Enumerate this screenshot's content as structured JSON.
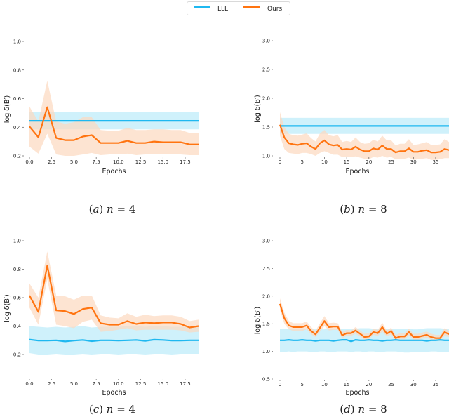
{
  "legend": {
    "items": [
      {
        "label": "LLL",
        "color": "#1fb8f0"
      },
      {
        "label": "Ours",
        "color": "#ff7410"
      }
    ]
  },
  "colors": {
    "lll_line": "#1fb8f0",
    "lll_band": "#c7eefa",
    "ours_line": "#ff7410",
    "ours_band": "#fcd9bf"
  },
  "chart_data": [
    {
      "id": "a",
      "type": "line",
      "caption": "(a) n = 4",
      "caption_parts": {
        "label": "(a)",
        "var": "n",
        "eq": "= 4"
      },
      "xlabel": "Epochs",
      "ylabel": "log δ(B′)",
      "xlim": [
        0,
        19
      ],
      "ylim": [
        0.2,
        1.0
      ],
      "xticks": [
        0.0,
        2.5,
        5.0,
        7.5,
        10.0,
        12.5,
        15.0,
        17.5
      ],
      "xtick_labels": [
        "0.0",
        "2.5",
        "5.0",
        "7.5",
        "10.0",
        "12.5",
        "15.0",
        "17.5"
      ],
      "yticks": [
        0.2,
        0.4,
        0.6,
        0.8,
        1.0
      ],
      "ytick_labels": [
        "0.2",
        "0.4",
        "0.6",
        "0.8",
        "1.0"
      ],
      "grid": false,
      "series": [
        {
          "name": "LLL",
          "x": [
            0,
            19
          ],
          "values": [
            0.445,
            0.445
          ],
          "lower": [
            0.385,
            0.385
          ],
          "upper": [
            0.505,
            0.505
          ]
        },
        {
          "name": "Ours",
          "x": [
            0,
            1,
            2,
            3,
            4,
            5,
            6,
            7,
            8,
            9,
            10,
            11,
            12,
            13,
            14,
            15,
            16,
            17,
            18,
            19
          ],
          "values": [
            0.405,
            0.33,
            0.54,
            0.325,
            0.31,
            0.31,
            0.335,
            0.345,
            0.29,
            0.29,
            0.29,
            0.305,
            0.29,
            0.29,
            0.3,
            0.295,
            0.295,
            0.295,
            0.28,
            0.28
          ],
          "lower": [
            0.265,
            0.215,
            0.355,
            0.21,
            0.2,
            0.2,
            0.21,
            0.22,
            0.205,
            0.21,
            0.21,
            0.215,
            0.205,
            0.21,
            0.21,
            0.21,
            0.21,
            0.21,
            0.205,
            0.205
          ],
          "upper": [
            0.545,
            0.44,
            0.725,
            0.44,
            0.425,
            0.435,
            0.47,
            0.47,
            0.38,
            0.375,
            0.375,
            0.395,
            0.38,
            0.38,
            0.385,
            0.385,
            0.38,
            0.38,
            0.36,
            0.36
          ]
        }
      ]
    },
    {
      "id": "b",
      "type": "line",
      "caption": "(b) n = 8",
      "caption_parts": {
        "label": "(b)",
        "var": "n",
        "eq": "= 8"
      },
      "xlabel": "Epochs",
      "ylabel": "log δ(B′)",
      "xlim": [
        0,
        38
      ],
      "ylim": [
        1.0,
        3.0
      ],
      "xticks": [
        0,
        5,
        10,
        15,
        20,
        25,
        30,
        35
      ],
      "xtick_labels": [
        "0",
        "5",
        "10",
        "15",
        "20",
        "25",
        "30",
        "35"
      ],
      "yticks": [
        1.0,
        1.5,
        2.0,
        2.5,
        3.0
      ],
      "ytick_labels": [
        "1.0",
        "1.5",
        "2.0",
        "2.5",
        "3.0"
      ],
      "grid": false,
      "series": [
        {
          "name": "LLL",
          "x": [
            0,
            38
          ],
          "values": [
            1.52,
            1.52
          ],
          "lower": [
            1.38,
            1.38
          ],
          "upper": [
            1.66,
            1.66
          ]
        },
        {
          "name": "Ours",
          "x": [
            0,
            1,
            2,
            3,
            4,
            5,
            6,
            7,
            8,
            9,
            10,
            11,
            12,
            13,
            14,
            15,
            16,
            17,
            18,
            19,
            20,
            21,
            22,
            23,
            24,
            25,
            26,
            27,
            28,
            29,
            30,
            31,
            32,
            33,
            34,
            35,
            36,
            37,
            38
          ],
          "values": [
            1.54,
            1.32,
            1.22,
            1.2,
            1.19,
            1.21,
            1.22,
            1.16,
            1.12,
            1.22,
            1.27,
            1.2,
            1.18,
            1.19,
            1.11,
            1.12,
            1.11,
            1.16,
            1.11,
            1.08,
            1.08,
            1.13,
            1.11,
            1.18,
            1.12,
            1.12,
            1.06,
            1.08,
            1.08,
            1.13,
            1.07,
            1.07,
            1.09,
            1.1,
            1.06,
            1.06,
            1.07,
            1.12,
            1.1
          ],
          "lower": [
            1.35,
            1.12,
            1.05,
            1.04,
            1.03,
            1.05,
            1.05,
            1.03,
            1.0,
            1.05,
            1.08,
            1.05,
            1.02,
            1.02,
            0.98,
            0.98,
            0.98,
            0.99,
            0.97,
            0.95,
            0.94,
            0.98,
            0.97,
            1.0,
            0.97,
            0.98,
            0.94,
            0.95,
            0.95,
            0.97,
            0.93,
            0.94,
            0.95,
            0.96,
            0.93,
            0.93,
            0.94,
            0.96,
            0.96
          ],
          "upper": [
            1.76,
            1.5,
            1.38,
            1.36,
            1.35,
            1.37,
            1.39,
            1.31,
            1.25,
            1.39,
            1.45,
            1.36,
            1.34,
            1.36,
            1.24,
            1.26,
            1.24,
            1.32,
            1.24,
            1.21,
            1.22,
            1.28,
            1.25,
            1.35,
            1.27,
            1.27,
            1.18,
            1.21,
            1.21,
            1.29,
            1.19,
            1.2,
            1.22,
            1.24,
            1.19,
            1.19,
            1.2,
            1.29,
            1.24
          ]
        }
      ]
    },
    {
      "id": "c",
      "type": "line",
      "caption": "(c) n = 4",
      "caption_parts": {
        "label": "(c)",
        "var": "n",
        "eq": "= 4"
      },
      "xlabel": "Epochs",
      "ylabel": "log δ(B′)",
      "xlim": [
        0,
        19
      ],
      "ylim": [
        0.2,
        1.0
      ],
      "xticks": [
        0.0,
        2.5,
        5.0,
        7.5,
        10.0,
        12.5,
        15.0,
        17.5
      ],
      "xtick_labels": [
        "0.0",
        "2.5",
        "5.0",
        "7.5",
        "10.0",
        "12.5",
        "15.0",
        "17.5"
      ],
      "yticks": [
        0.2,
        0.4,
        0.6,
        0.8,
        1.0
      ],
      "ytick_labels": [
        "0.2",
        "0.4",
        "0.6",
        "0.8",
        "1.0"
      ],
      "grid": false,
      "series": [
        {
          "name": "LLL",
          "x": [
            0,
            1,
            2,
            3,
            4,
            5,
            6,
            7,
            8,
            9,
            10,
            11,
            12,
            13,
            14,
            15,
            16,
            17,
            18,
            19
          ],
          "values": [
            0.305,
            0.298,
            0.298,
            0.3,
            0.292,
            0.298,
            0.302,
            0.294,
            0.3,
            0.3,
            0.298,
            0.3,
            0.302,
            0.296,
            0.304,
            0.302,
            0.298,
            0.298,
            0.3,
            0.3
          ],
          "lower": [
            0.21,
            0.2,
            0.2,
            0.205,
            0.2,
            0.2,
            0.205,
            0.2,
            0.205,
            0.205,
            0.2,
            0.205,
            0.205,
            0.2,
            0.205,
            0.205,
            0.2,
            0.205,
            0.205,
            0.205
          ],
          "upper": [
            0.4,
            0.395,
            0.39,
            0.395,
            0.39,
            0.395,
            0.4,
            0.39,
            0.395,
            0.395,
            0.395,
            0.4,
            0.4,
            0.395,
            0.4,
            0.4,
            0.395,
            0.395,
            0.395,
            0.395
          ]
        },
        {
          "name": "Ours",
          "x": [
            0,
            1,
            2,
            3,
            4,
            5,
            6,
            7,
            8,
            9,
            10,
            11,
            12,
            13,
            14,
            15,
            16,
            17,
            18,
            19
          ],
          "values": [
            0.615,
            0.5,
            0.825,
            0.51,
            0.505,
            0.485,
            0.52,
            0.53,
            0.42,
            0.41,
            0.41,
            0.435,
            0.415,
            0.425,
            0.42,
            0.425,
            0.425,
            0.415,
            0.39,
            0.4
          ],
          "lower": [
            0.53,
            0.41,
            0.73,
            0.41,
            0.4,
            0.385,
            0.43,
            0.445,
            0.36,
            0.365,
            0.375,
            0.385,
            0.37,
            0.375,
            0.375,
            0.375,
            0.375,
            0.37,
            0.355,
            0.36
          ],
          "upper": [
            0.7,
            0.6,
            0.925,
            0.615,
            0.61,
            0.585,
            0.615,
            0.615,
            0.475,
            0.46,
            0.455,
            0.49,
            0.465,
            0.48,
            0.47,
            0.475,
            0.475,
            0.465,
            0.435,
            0.445
          ]
        }
      ]
    },
    {
      "id": "d",
      "type": "line",
      "caption": "(d) n = 8",
      "caption_parts": {
        "label": "(d)",
        "var": "n",
        "eq": "= 8"
      },
      "xlabel": "Epochs",
      "ylabel": "log δ(B′)",
      "xlim": [
        0,
        38
      ],
      "ylim": [
        0.5,
        3.0
      ],
      "xticks": [
        0,
        5,
        10,
        15,
        20,
        25,
        30,
        35
      ],
      "xtick_labels": [
        "0",
        "5",
        "10",
        "15",
        "20",
        "25",
        "30",
        "35"
      ],
      "yticks": [
        0.5,
        1.0,
        1.5,
        2.0,
        2.5,
        3.0
      ],
      "ytick_labels": [
        "0.5",
        "1.0",
        "1.5",
        "2.0",
        "2.5",
        "3.0"
      ],
      "grid": false,
      "series": [
        {
          "name": "LLL",
          "x": [
            0,
            1,
            2,
            3,
            4,
            5,
            6,
            7,
            8,
            9,
            10,
            11,
            12,
            13,
            14,
            15,
            16,
            17,
            18,
            19,
            20,
            21,
            22,
            23,
            24,
            25,
            26,
            27,
            28,
            29,
            30,
            31,
            32,
            33,
            34,
            35,
            36,
            37,
            38
          ],
          "values": [
            1.2,
            1.2,
            1.21,
            1.2,
            1.2,
            1.21,
            1.2,
            1.2,
            1.19,
            1.2,
            1.2,
            1.2,
            1.19,
            1.2,
            1.21,
            1.21,
            1.18,
            1.21,
            1.2,
            1.2,
            1.21,
            1.2,
            1.2,
            1.19,
            1.2,
            1.2,
            1.21,
            1.2,
            1.2,
            1.2,
            1.2,
            1.2,
            1.2,
            1.19,
            1.2,
            1.2,
            1.21,
            1.2,
            1.2
          ],
          "lower": [
            0.99,
            0.99,
            1.0,
            0.99,
            1.0,
            1.0,
            1.0,
            0.99,
            0.99,
            1.0,
            1.0,
            0.99,
            0.99,
            1.0,
            1.0,
            1.0,
            0.99,
            1.0,
            1.0,
            0.99,
            1.0,
            1.0,
            0.99,
            0.99,
            1.0,
            1.0,
            1.0,
            0.99,
            0.98,
            0.98,
            0.99,
            0.99,
            0.99,
            0.99,
            1.0,
            1.0,
            0.99,
            0.99,
            0.99
          ],
          "upper": [
            1.41,
            1.41,
            1.41,
            1.41,
            1.41,
            1.41,
            1.41,
            1.41,
            1.4,
            1.4,
            1.4,
            1.41,
            1.41,
            1.41,
            1.41,
            1.41,
            1.41,
            1.41,
            1.42,
            1.42,
            1.42,
            1.41,
            1.41,
            1.41,
            1.41,
            1.41,
            1.41,
            1.41,
            1.41,
            1.41,
            1.4,
            1.4,
            1.41,
            1.42,
            1.42,
            1.42,
            1.42,
            1.41,
            1.41
          ]
        },
        {
          "name": "Ours",
          "x": [
            0,
            1,
            2,
            3,
            4,
            5,
            6,
            7,
            8,
            9,
            10,
            11,
            12,
            13,
            14,
            15,
            16,
            17,
            18,
            19,
            20,
            21,
            22,
            23,
            24,
            25,
            26,
            27,
            28,
            29,
            30,
            31,
            32,
            33,
            34,
            35,
            36,
            37,
            38
          ],
          "values": [
            1.86,
            1.6,
            1.47,
            1.44,
            1.44,
            1.44,
            1.47,
            1.37,
            1.31,
            1.43,
            1.55,
            1.44,
            1.45,
            1.45,
            1.29,
            1.33,
            1.33,
            1.38,
            1.32,
            1.26,
            1.27,
            1.35,
            1.33,
            1.44,
            1.32,
            1.37,
            1.24,
            1.27,
            1.27,
            1.35,
            1.26,
            1.26,
            1.28,
            1.3,
            1.26,
            1.24,
            1.24,
            1.35,
            1.31
          ],
          "lower": [
            1.76,
            1.5,
            1.4,
            1.37,
            1.37,
            1.37,
            1.4,
            1.31,
            1.26,
            1.36,
            1.46,
            1.38,
            1.39,
            1.39,
            1.24,
            1.28,
            1.28,
            1.32,
            1.27,
            1.21,
            1.22,
            1.3,
            1.28,
            1.36,
            1.27,
            1.31,
            1.19,
            1.22,
            1.22,
            1.29,
            1.21,
            1.21,
            1.23,
            1.25,
            1.21,
            1.19,
            1.19,
            1.28,
            1.26
          ],
          "upper": [
            1.96,
            1.7,
            1.55,
            1.51,
            1.51,
            1.51,
            1.54,
            1.44,
            1.37,
            1.51,
            1.64,
            1.51,
            1.52,
            1.51,
            1.35,
            1.39,
            1.38,
            1.44,
            1.38,
            1.32,
            1.33,
            1.41,
            1.39,
            1.52,
            1.38,
            1.43,
            1.3,
            1.33,
            1.33,
            1.41,
            1.32,
            1.32,
            1.34,
            1.36,
            1.32,
            1.3,
            1.3,
            1.42,
            1.37
          ]
        }
      ]
    }
  ]
}
